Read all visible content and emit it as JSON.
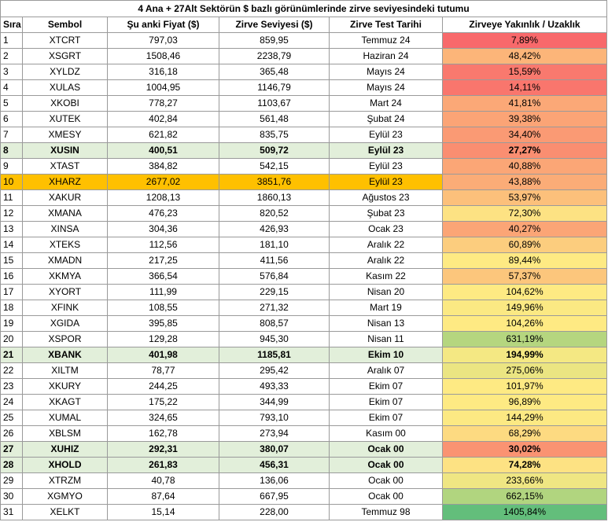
{
  "title": "4 Ana + 27Alt Sektörün $ bazlı görünümlerinde zirve seviyesindeki tutumu",
  "headers": [
    "Sıra",
    "Sembol",
    "Şu anki Fiyat ($)",
    "Zirve Seviyesi ($)",
    "Zirve Test Tarihi",
    "Zirveye Yakınlık /  Uzaklık"
  ],
  "rows": [
    {
      "sira": "1",
      "sembol": "XTCRT",
      "fiyat": "797,03",
      "zirve": "859,95",
      "tarih": "Temmuz 24",
      "pct": "7,89%",
      "color": "#f8696b",
      "hl": ""
    },
    {
      "sira": "2",
      "sembol": "XSGRT",
      "fiyat": "1508,46",
      "zirve": "2238,79",
      "tarih": "Haziran 24",
      "pct": "48,42%",
      "color": "#fcb579",
      "hl": ""
    },
    {
      "sira": "3",
      "sembol": "XYLDZ",
      "fiyat": "316,18",
      "zirve": "365,48",
      "tarih": "Mayıs 24",
      "pct": "15,59%",
      "color": "#f9796e",
      "hl": ""
    },
    {
      "sira": "4",
      "sembol": "XULAS",
      "fiyat": "1004,95",
      "zirve": "1146,79",
      "tarih": "Mayıs 24",
      "pct": "14,11%",
      "color": "#f9766d",
      "hl": ""
    },
    {
      "sira": "5",
      "sembol": "XKOBI",
      "fiyat": "778,27",
      "zirve": "1103,67",
      "tarih": "Mart 24",
      "pct": "41,81%",
      "color": "#fba877",
      "hl": ""
    },
    {
      "sira": "6",
      "sembol": "XUTEK",
      "fiyat": "402,84",
      "zirve": "561,48",
      "tarih": "Şubat 24",
      "pct": "39,38%",
      "color": "#fba476",
      "hl": ""
    },
    {
      "sira": "7",
      "sembol": "XMESY",
      "fiyat": "621,82",
      "zirve": "835,75",
      "tarih": "Eylül 23",
      "pct": "34,40%",
      "color": "#fa9a74",
      "hl": ""
    },
    {
      "sira": "8",
      "sembol": "XUSIN",
      "fiyat": "400,51",
      "zirve": "509,72",
      "tarih": "Eylül 23",
      "pct": "27,27%",
      "color": "#fa8e71",
      "hl": "green"
    },
    {
      "sira": "9",
      "sembol": "XTAST",
      "fiyat": "384,82",
      "zirve": "542,15",
      "tarih": "Eylül 23",
      "pct": "40,88%",
      "color": "#fba676",
      "hl": ""
    },
    {
      "sira": "10",
      "sembol": "XHARZ",
      "fiyat": "2677,02",
      "zirve": "3851,76",
      "tarih": "Eylül 23",
      "pct": "43,88%",
      "color": "#fbac77",
      "hl": "orange"
    },
    {
      "sira": "11",
      "sembol": "XAKUR",
      "fiyat": "1208,13",
      "zirve": "1860,13",
      "tarih": "Ağustos 23",
      "pct": "53,97%",
      "color": "#fcc07b",
      "hl": ""
    },
    {
      "sira": "12",
      "sembol": "XMANA",
      "fiyat": "476,23",
      "zirve": "820,52",
      "tarih": "Şubat 23",
      "pct": "72,30%",
      "color": "#fde283",
      "hl": ""
    },
    {
      "sira": "13",
      "sembol": "XINSA",
      "fiyat": "304,36",
      "zirve": "426,93",
      "tarih": "Ocak 23",
      "pct": "40,27%",
      "color": "#fba576",
      "hl": ""
    },
    {
      "sira": "14",
      "sembol": "XTEKS",
      "fiyat": "112,56",
      "zirve": "181,10",
      "tarih": "Aralık 22",
      "pct": "60,89%",
      "color": "#fccd7e",
      "hl": ""
    },
    {
      "sira": "15",
      "sembol": "XMADN",
      "fiyat": "217,25",
      "zirve": "411,56",
      "tarih": "Aralık 22",
      "pct": "89,44%",
      "color": "#feea83",
      "hl": ""
    },
    {
      "sira": "16",
      "sembol": "XKMYA",
      "fiyat": "366,54",
      "zirve": "576,84",
      "tarih": "Kasım 22",
      "pct": "57,37%",
      "color": "#fcc67c",
      "hl": ""
    },
    {
      "sira": "17",
      "sembol": "XYORT",
      "fiyat": "111,99",
      "zirve": "229,15",
      "tarih": "Nisan 20",
      "pct": "104,62%",
      "color": "#feea83",
      "hl": ""
    },
    {
      "sira": "18",
      "sembol": "XFINK",
      "fiyat": "108,55",
      "zirve": "271,32",
      "tarih": "Mart 19",
      "pct": "149,96%",
      "color": "#fbe983",
      "hl": ""
    },
    {
      "sira": "19",
      "sembol": "XGIDA",
      "fiyat": "395,85",
      "zirve": "808,57",
      "tarih": "Nisan 13",
      "pct": "104,26%",
      "color": "#feea83",
      "hl": ""
    },
    {
      "sira": "20",
      "sembol": "XSPOR",
      "fiyat": "129,28",
      "zirve": "945,30",
      "tarih": "Nisan 11",
      "pct": "631,19%",
      "color": "#b5d67f",
      "hl": ""
    },
    {
      "sira": "21",
      "sembol": "XBANK",
      "fiyat": "401,98",
      "zirve": "1185,81",
      "tarih": "Ekim 10",
      "pct": "194,99%",
      "color": "#f4e883",
      "hl": "green"
    },
    {
      "sira": "22",
      "sembol": "XILTM",
      "fiyat": "78,77",
      "zirve": "295,42",
      "tarih": "Aralık 07",
      "pct": "275,06%",
      "color": "#ebe582",
      "hl": ""
    },
    {
      "sira": "23",
      "sembol": "XKURY",
      "fiyat": "244,25",
      "zirve": "493,33",
      "tarih": "Ekim 07",
      "pct": "101,97%",
      "color": "#feea83",
      "hl": ""
    },
    {
      "sira": "24",
      "sembol": "XKAGT",
      "fiyat": "175,22",
      "zirve": "344,99",
      "tarih": "Ekim 07",
      "pct": "96,89%",
      "color": "#feea83",
      "hl": ""
    },
    {
      "sira": "25",
      "sembol": "XUMAL",
      "fiyat": "324,65",
      "zirve": "793,10",
      "tarih": "Ekim 07",
      "pct": "144,29%",
      "color": "#fce983",
      "hl": ""
    },
    {
      "sira": "26",
      "sembol": "XBLSM",
      "fiyat": "162,78",
      "zirve": "273,94",
      "tarih": "Kasım 00",
      "pct": "68,29%",
      "color": "#fdda81",
      "hl": ""
    },
    {
      "sira": "27",
      "sembol": "XUHIZ",
      "fiyat": "292,31",
      "zirve": "380,07",
      "tarih": "Ocak 00",
      "pct": "30,02%",
      "color": "#fa9372",
      "hl": "green"
    },
    {
      "sira": "28",
      "sembol": "XHOLD",
      "fiyat": "261,83",
      "zirve": "456,31",
      "tarih": "Ocak 00",
      "pct": "74,28%",
      "color": "#fde283",
      "hl": "green"
    },
    {
      "sira": "29",
      "sembol": "XTRZM",
      "fiyat": "40,78",
      "zirve": "136,06",
      "tarih": "Ocak 00",
      "pct": "233,66%",
      "color": "#efe683",
      "hl": ""
    },
    {
      "sira": "30",
      "sembol": "XGMYO",
      "fiyat": "87,64",
      "zirve": "667,95",
      "tarih": "Ocak 00",
      "pct": "662,15%",
      "color": "#b1d57f",
      "hl": ""
    },
    {
      "sira": "31",
      "sembol": "XELKT",
      "fiyat": "15,14",
      "zirve": "228,00",
      "tarih": "Temmuz 98",
      "pct": "1405,84%",
      "color": "#63be7b",
      "hl": ""
    }
  ]
}
